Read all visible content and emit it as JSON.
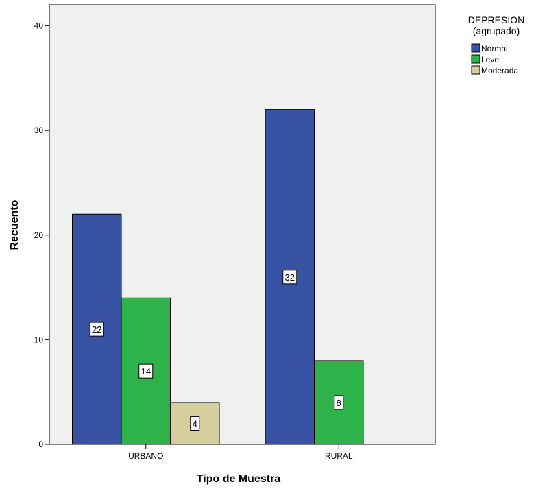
{
  "chart_data": {
    "type": "bar",
    "title": "",
    "xlabel": "Tipo de Muestra",
    "ylabel": "Recuento",
    "categories": [
      "URBANO",
      "RURAL"
    ],
    "ylim": [
      0,
      42
    ],
    "yticks": [
      0,
      10,
      20,
      30,
      40
    ],
    "grid": false,
    "legend": {
      "title_line1": "DEPRESION",
      "title_line2": "(agrupado)",
      "placement": "top-right outside"
    },
    "series": [
      {
        "name": "Normal",
        "color": "#3953a4",
        "values": [
          22,
          32
        ]
      },
      {
        "name": "Leve",
        "color": "#2db34a",
        "values": [
          14,
          8
        ]
      },
      {
        "name": "Moderada",
        "color": "#d6cf9d",
        "values": [
          4,
          null
        ]
      }
    ],
    "plot_background": "#f0f0f0"
  }
}
